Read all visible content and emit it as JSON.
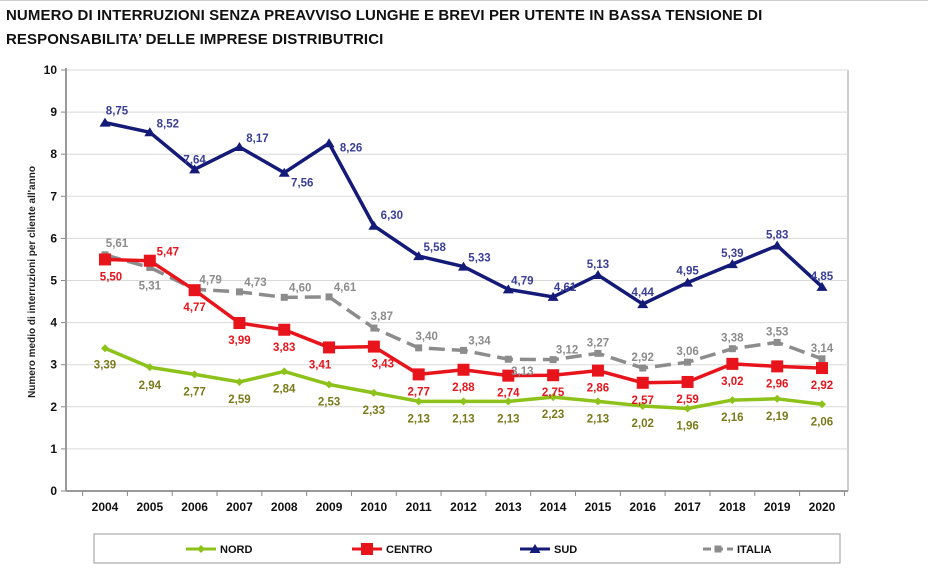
{
  "title_line1": "NUMERO DI INTERRUZIONI SENZA PREAVVISO LUNGHE E BREVI PER UTENTE IN BASSA TENSIONE DI",
  "title_line2": "RESPONSABILITA’ DELLE IMPRESE DISTRIBUTRICI",
  "chart_data": {
    "type": "line",
    "title": "NUMERO DI INTERRUZIONI SENZA PREAVVISO LUNGHE E BREVI PER UTENTE IN BASSA TENSIONE DI RESPONSABILITA’ DELLE IMPRESE DISTRIBUTRICI",
    "xlabel": "",
    "ylabel": "Numero medio di interruzioni per cliente all'anno",
    "ylim": [
      0,
      10
    ],
    "yticks": [
      "0",
      "1",
      "2",
      "3",
      "4",
      "5",
      "6",
      "7",
      "8",
      "9",
      "10"
    ],
    "grid": true,
    "legend_position": "bottom",
    "categories": [
      "2004",
      "2005",
      "2006",
      "2007",
      "2008",
      "2009",
      "2010",
      "2011",
      "2012",
      "2013",
      "2014",
      "2015",
      "2016",
      "2017",
      "2018",
      "2019",
      "2020"
    ],
    "series": [
      {
        "name": "NORD",
        "color": "#8cc21a",
        "label_color": "#7a7a1a",
        "marker": "diamond",
        "dashed": false,
        "values": [
          3.39,
          2.94,
          2.77,
          2.59,
          2.84,
          2.53,
          2.33,
          2.13,
          2.13,
          2.13,
          2.23,
          2.13,
          2.02,
          1.96,
          2.16,
          2.19,
          2.06
        ],
        "labels": [
          "3,39",
          "2,94",
          "2,77",
          "2,59",
          "2,84",
          "2,53",
          "2,33",
          "2,13",
          "2,13",
          "2,13",
          "2,23",
          "2,13",
          "2,02",
          "1,96",
          "2,16",
          "2,19",
          "2,06"
        ]
      },
      {
        "name": "CENTRO",
        "color": "#e8141c",
        "label_color": "#e8141c",
        "marker": "square",
        "dashed": false,
        "values": [
          5.5,
          5.47,
          4.77,
          3.99,
          3.83,
          3.41,
          3.43,
          2.77,
          2.88,
          2.74,
          2.75,
          2.86,
          2.57,
          2.59,
          3.02,
          2.96,
          2.92
        ],
        "labels": [
          "5,50",
          "5,47",
          "4,77",
          "3,99",
          "3,83",
          "3,41",
          "3,43",
          "2,77",
          "2,88",
          "2,74",
          "2,75",
          "2,86",
          "2,57",
          "2,59",
          "3,02",
          "2,96",
          "2,92"
        ]
      },
      {
        "name": "SUD",
        "color": "#141a78",
        "label_color": "#3a3f96",
        "marker": "triangle",
        "dashed": false,
        "values": [
          8.75,
          8.52,
          7.64,
          8.17,
          7.56,
          8.26,
          6.3,
          5.58,
          5.33,
          4.79,
          4.61,
          5.13,
          4.44,
          4.95,
          5.39,
          5.83,
          4.85
        ],
        "labels": [
          "8,75",
          "8,52",
          "7,64",
          "8,17",
          "7,56",
          "8,26",
          "6,30",
          "5,58",
          "5,33",
          "4,79",
          "4,61",
          "5,13",
          "4,44",
          "4,95",
          "5,39",
          "5,83",
          "4,85"
        ]
      },
      {
        "name": "ITALIA",
        "color": "#8c8c8c",
        "label_color": "#8c8c8c",
        "marker": "square-small",
        "dashed": true,
        "values": [
          5.61,
          5.31,
          4.79,
          4.73,
          4.6,
          4.61,
          3.87,
          3.4,
          3.34,
          3.13,
          3.12,
          3.27,
          2.92,
          3.06,
          3.38,
          3.53,
          3.14
        ],
        "labels": [
          "5,61",
          "5,31",
          "4,79",
          "4,73",
          "4,60",
          "4,61",
          "3,87",
          "3,40",
          "3,34",
          "3,13",
          "3,12",
          "3,27",
          "2,92",
          "3,06",
          "3,38",
          "3,53",
          "3,14"
        ]
      }
    ]
  }
}
